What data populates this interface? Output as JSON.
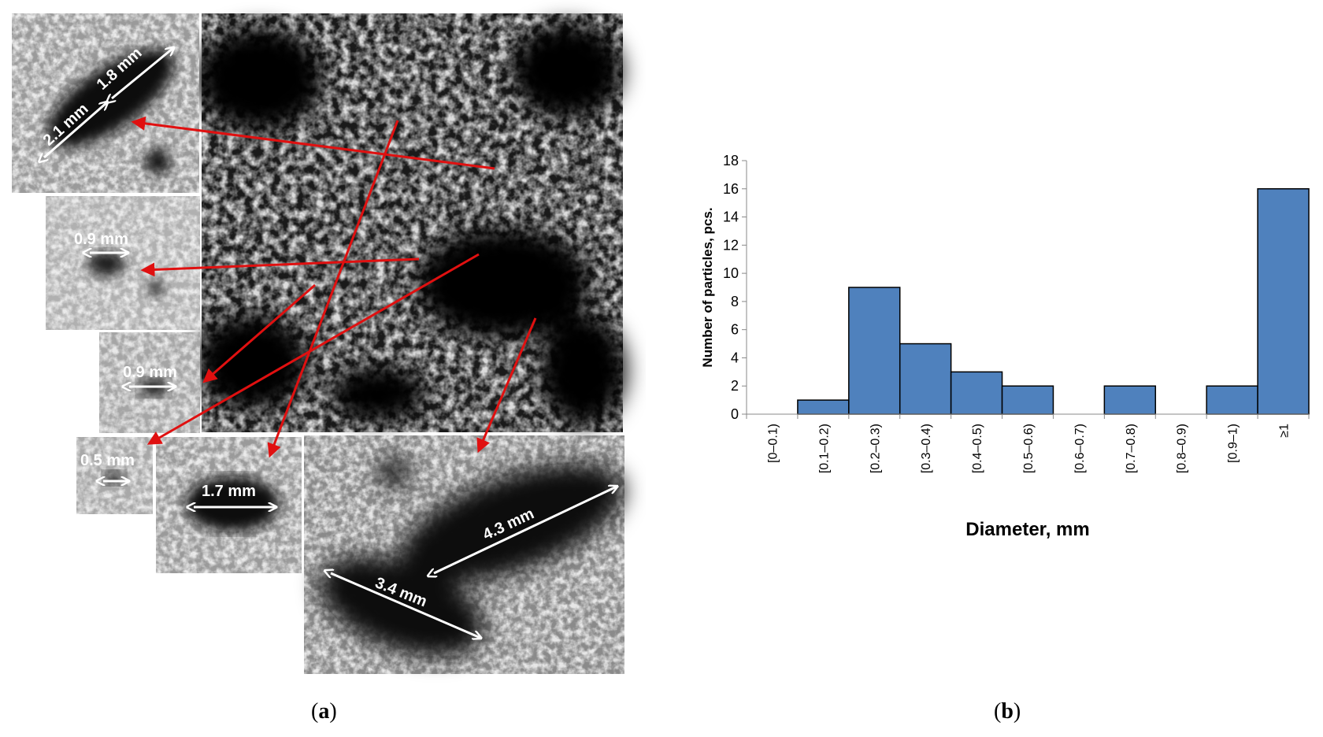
{
  "panel_a": {
    "caption": "a",
    "measurements": [
      "2.1 mm",
      "1.8 mm",
      "0.9 mm",
      "0.9 mm",
      "0.5 mm",
      "1.7 mm",
      "4.3 mm",
      "3.4 mm"
    ],
    "colors": {
      "arrow": "#e01010",
      "image_dark": "#0a0a0a",
      "image_light": "#e8e8e8"
    }
  },
  "panel_b": {
    "caption": "b"
  },
  "chart_data": {
    "type": "bar",
    "categories": [
      "[0–0.1)",
      "[0.1–0.2)",
      "[0.2–0.3)",
      "[0.3–0.4)",
      "[0.4–0.5)",
      "[0.5–0.6)",
      "[0.6–0.7)",
      "[0.7–0.8)",
      "[0.8–0.9)",
      "[0.9–1)",
      "≥1"
    ],
    "values": [
      0,
      1,
      9,
      5,
      3,
      2,
      0,
      2,
      0,
      2,
      16
    ],
    "xlabel": "Diameter, mm",
    "ylabel": "Number of particles, pcs.",
    "ylim": [
      0,
      18
    ],
    "yticks": [
      0,
      2,
      4,
      6,
      8,
      10,
      12,
      14,
      16,
      18
    ],
    "grid": false,
    "bar_color": "#4f81bd",
    "bar_edge_color": "#000000"
  }
}
